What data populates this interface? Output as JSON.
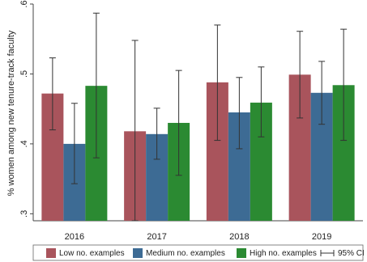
{
  "chart_data": {
    "type": "bar",
    "categories": [
      "2016",
      "2017",
      "2018",
      "2019"
    ],
    "ylabel": "% women among new tenure-track faculty",
    "xlabel": "",
    "ylim": [
      0.29,
      0.6
    ],
    "yticks": [
      {
        "value": 0.3,
        "label": ".3"
      },
      {
        "value": 0.4,
        "label": ".4"
      },
      {
        "value": 0.5,
        "label": ".5"
      },
      {
        "value": 0.6,
        "label": ".6"
      }
    ],
    "grid": false,
    "legend_position": "bottom",
    "series": [
      {
        "name": "Low no. examples",
        "color": "#a9545c",
        "values": [
          0.472,
          0.418,
          0.488,
          0.499
        ],
        "ci_low": [
          0.42,
          0.29,
          0.405,
          0.437
        ],
        "ci_high": [
          0.523,
          0.548,
          0.57,
          0.561
        ]
      },
      {
        "name": "Medium no. examples",
        "color": "#3d6b94",
        "values": [
          0.4,
          0.414,
          0.445,
          0.473
        ],
        "ci_low": [
          0.343,
          0.378,
          0.393,
          0.428
        ],
        "ci_high": [
          0.458,
          0.451,
          0.495,
          0.518
        ]
      },
      {
        "name": "High no. examples",
        "color": "#2b8a32",
        "values": [
          0.483,
          0.43,
          0.459,
          0.484
        ],
        "ci_low": [
          0.38,
          0.355,
          0.41,
          0.405
        ],
        "ci_high": [
          0.587,
          0.505,
          0.51,
          0.564
        ]
      }
    ],
    "ci_legend_label": "95% CI"
  }
}
